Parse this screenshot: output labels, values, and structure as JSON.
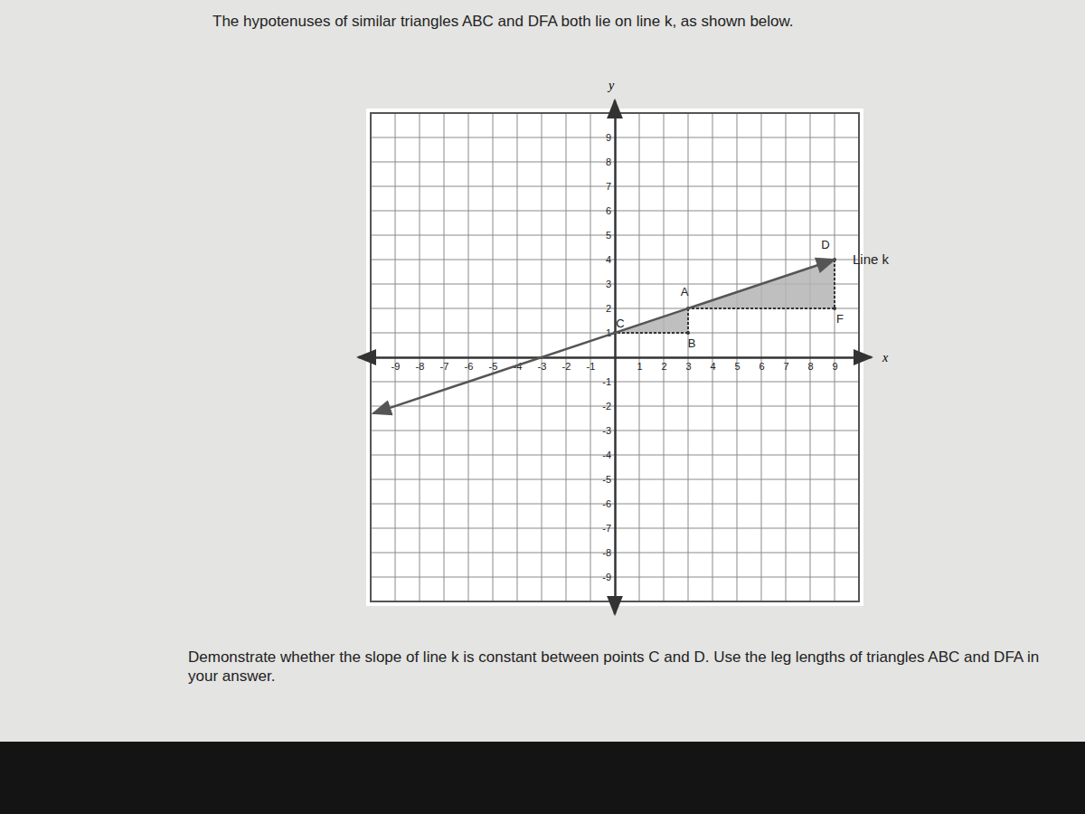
{
  "chart_data": {
    "type": "line",
    "title": "The hypotenuses of similar triangles ABC and DFA both lie on line k, as shown below.",
    "question": "Demonstrate whether the slope of line k is constant between points C and D. Use the leg lengths of triangles ABC and DFA in your answer.",
    "x_label": "x",
    "y_label": "y",
    "xlim": [
      -10,
      10
    ],
    "ylim": [
      -10,
      10
    ],
    "xticks": [
      -9,
      -8,
      -7,
      -6,
      -5,
      -4,
      -3,
      -2,
      -1,
      1,
      2,
      3,
      4,
      5,
      6,
      7,
      8,
      9
    ],
    "yticks": [
      -9,
      -8,
      -7,
      -6,
      -5,
      -4,
      -3,
      -2,
      -1,
      1,
      2,
      3,
      4,
      5,
      6,
      7,
      8,
      9
    ],
    "grid": true,
    "series": [
      {
        "name": "Line k",
        "color": "#555555",
        "x": [
          -9.9,
          9
        ],
        "values": [
          -2.3,
          4
        ]
      }
    ],
    "points": [
      {
        "label": "A",
        "x": 3,
        "y": 2
      },
      {
        "label": "B",
        "x": 3,
        "y": 1
      },
      {
        "label": "C",
        "x": 0,
        "y": 1
      },
      {
        "label": "D",
        "x": 9,
        "y": 4
      },
      {
        "label": "F",
        "x": 9,
        "y": 2
      }
    ],
    "triangles": [
      [
        "A",
        "B",
        "C"
      ],
      [
        "D",
        "F",
        "A"
      ]
    ]
  }
}
